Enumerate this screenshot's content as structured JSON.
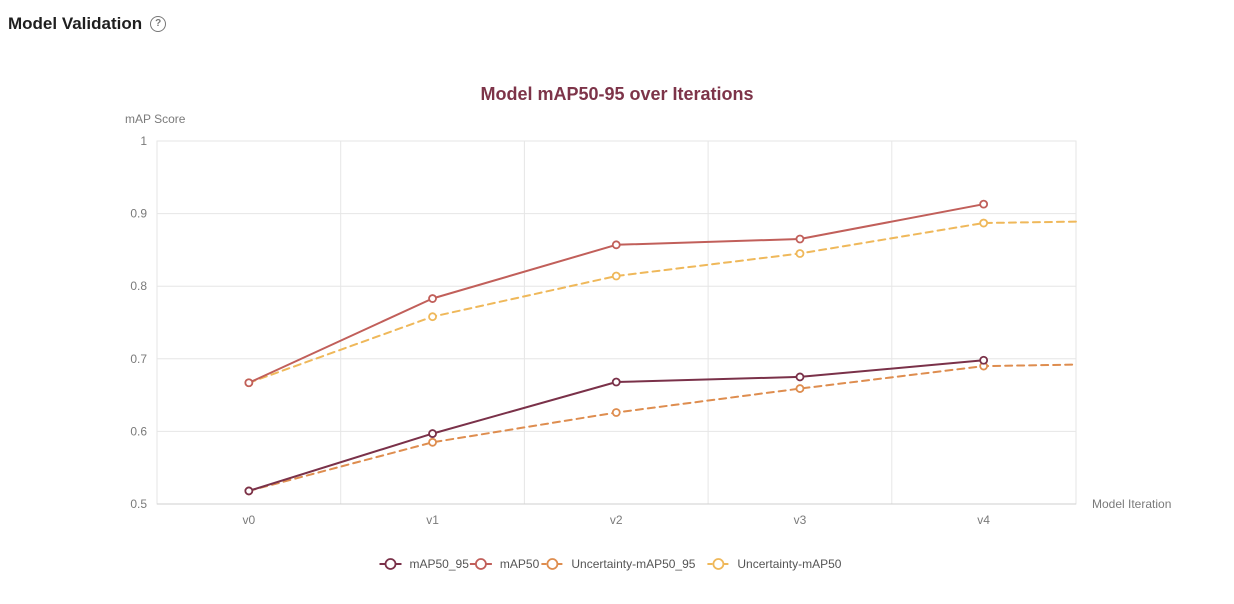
{
  "header": {
    "title": "Model Validation",
    "help_icon": "question-circle-icon"
  },
  "chart_data": {
    "type": "line",
    "title": "Model mAP50-95 over Iterations",
    "title_color": "#7d3449",
    "xlabel": "Model Iteration",
    "ylabel": "mAP Score",
    "categories": [
      "v0",
      "v1",
      "v2",
      "v3",
      "v4"
    ],
    "ylim": [
      0.5,
      1.0
    ],
    "yticks": [
      "0.5",
      "0.6",
      "0.7",
      "0.8",
      "0.9",
      "1"
    ],
    "grid": true,
    "legend_position": "bottom",
    "series": [
      {
        "name": "mAP50_95",
        "color": "#7a3149",
        "dashed": false,
        "values": [
          0.518,
          0.597,
          0.668,
          0.675,
          0.698
        ],
        "extension": null
      },
      {
        "name": "mAP50",
        "color": "#c15f5a",
        "dashed": false,
        "values": [
          0.667,
          0.783,
          0.857,
          0.865,
          0.913
        ],
        "extension": null
      },
      {
        "name": "Uncertainty-mAP50_95",
        "color": "#de8d4f",
        "dashed": true,
        "values": [
          0.518,
          0.585,
          0.626,
          0.659,
          0.69
        ],
        "extension": 0.692
      },
      {
        "name": "Uncertainty-mAP50",
        "color": "#efb85a",
        "dashed": true,
        "values": [
          0.667,
          0.758,
          0.814,
          0.845,
          0.887
        ],
        "extension": 0.889
      }
    ]
  }
}
